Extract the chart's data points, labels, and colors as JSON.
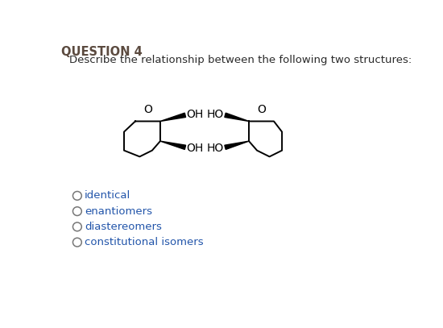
{
  "title": "QUESTION 4",
  "subtitle": "Describe the relationship between the following two structures:",
  "choices": [
    "identical",
    "enantiomers",
    "diastereomers",
    "constitutional isomers"
  ],
  "title_color": "#5B4A3F",
  "subtitle_color": "#2A2A2A",
  "choice_color": "#2255AA",
  "bg_color": "#FFFFFF",
  "title_fontsize": 10.5,
  "subtitle_fontsize": 9.5,
  "choice_fontsize": 9.5
}
